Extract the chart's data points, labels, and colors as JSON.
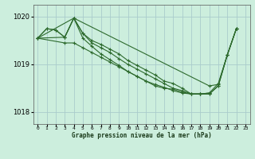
{
  "title": "Graphe pression niveau de la mer (hPa)",
  "background_color": "#cceedd",
  "grid_color": "#aacccc",
  "line_color": "#2d6a2d",
  "xlim": [
    -0.5,
    23.5
  ],
  "ylim": [
    1017.75,
    1020.25
  ],
  "yticks": [
    1018,
    1019,
    1020
  ],
  "xtick_labels": [
    "0",
    "1",
    "2",
    "3",
    "4",
    "5",
    "6",
    "7",
    "8",
    "9",
    "10",
    "11",
    "12",
    "13",
    "14",
    "15",
    "16",
    "17",
    "18",
    "19",
    "20",
    "21",
    "22",
    "23"
  ],
  "series": [
    {
      "x": [
        0,
        1,
        2,
        3,
        4,
        5,
        6,
        7,
        8,
        9,
        10,
        11,
        12,
        13,
        14,
        15,
        16,
        17,
        18,
        19,
        20,
        21,
        22
      ],
      "y": [
        1019.55,
        1019.75,
        1019.72,
        1019.57,
        1019.97,
        1019.65,
        1019.5,
        1019.42,
        1019.32,
        1019.22,
        1019.08,
        1018.98,
        1018.88,
        1018.78,
        1018.65,
        1018.6,
        1018.5,
        1018.38,
        1018.38,
        1018.38,
        1018.55,
        1019.2,
        1019.75
      ]
    },
    {
      "x": [
        0,
        3,
        4,
        5,
        6,
        7,
        8,
        9,
        10,
        11,
        12,
        13,
        14,
        15,
        16,
        17,
        18,
        19,
        20,
        21,
        22
      ],
      "y": [
        1019.55,
        1019.57,
        1019.97,
        1019.65,
        1019.45,
        1019.35,
        1019.25,
        1019.12,
        1019.0,
        1018.9,
        1018.8,
        1018.7,
        1018.6,
        1018.5,
        1018.45,
        1018.38,
        1018.38,
        1018.38,
        1018.55,
        1019.2,
        1019.75
      ]
    },
    {
      "x": [
        0,
        1,
        2,
        3,
        4,
        5,
        6,
        7,
        8,
        9,
        10,
        11,
        12,
        13,
        14,
        15,
        16,
        17,
        18,
        19,
        20,
        21,
        22
      ],
      "y": [
        1019.55,
        1019.75,
        1019.72,
        1019.57,
        1019.97,
        1019.55,
        1019.38,
        1019.22,
        1019.1,
        1018.98,
        1018.85,
        1018.75,
        1018.65,
        1018.55,
        1018.5,
        1018.48,
        1018.42,
        1018.38,
        1018.38,
        1018.4,
        1018.6,
        1019.2,
        1019.75
      ]
    },
    {
      "x": [
        0,
        3,
        4,
        5,
        6,
        7,
        8,
        9,
        10,
        11,
        12,
        13,
        14,
        15,
        16,
        17,
        18,
        19
      ],
      "y": [
        1019.55,
        1019.45,
        1019.45,
        1019.35,
        1019.25,
        1019.15,
        1019.05,
        1018.95,
        1018.85,
        1018.75,
        1018.65,
        1018.58,
        1018.52,
        1018.45,
        1018.4,
        1018.38,
        1018.38,
        1018.4
      ]
    },
    {
      "x": [
        0,
        4,
        19,
        20,
        21,
        22
      ],
      "y": [
        1019.55,
        1019.97,
        1018.55,
        1018.58,
        1019.2,
        1019.75
      ]
    }
  ]
}
